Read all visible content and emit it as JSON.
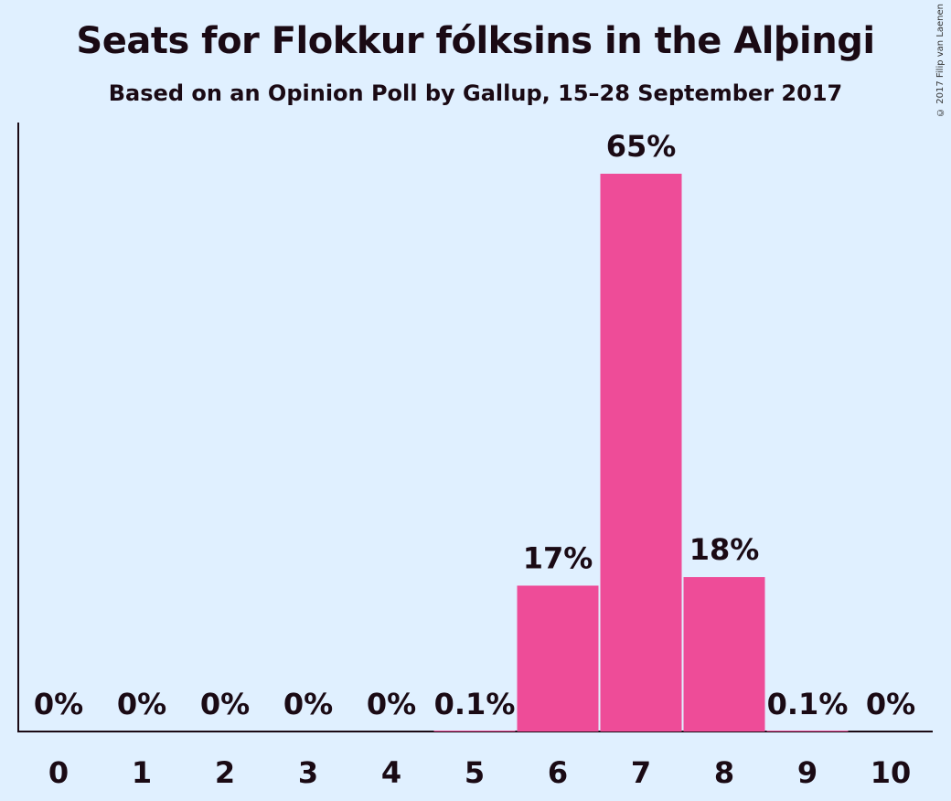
{
  "chart_data": {
    "type": "bar",
    "title": "Seats for Flokkur fólksins in the Alþingi",
    "subtitle": "Based on an Opinion Poll by Gallup, 15–28 September 2017",
    "copyright": "© 2017 Filip van Laenen",
    "categories": [
      "0",
      "1",
      "2",
      "3",
      "4",
      "5",
      "6",
      "7",
      "8",
      "9",
      "10"
    ],
    "values": [
      0,
      0,
      0,
      0,
      0,
      0.1,
      17,
      65,
      18,
      0.1,
      0
    ],
    "data_labels": [
      "0%",
      "0%",
      "0%",
      "0%",
      "0%",
      "0.1%",
      "17%",
      "65%",
      "18%",
      "0.1%",
      "0%"
    ],
    "ylim": [
      0,
      70
    ],
    "grid": false,
    "bar_color": "#ee4c98"
  }
}
